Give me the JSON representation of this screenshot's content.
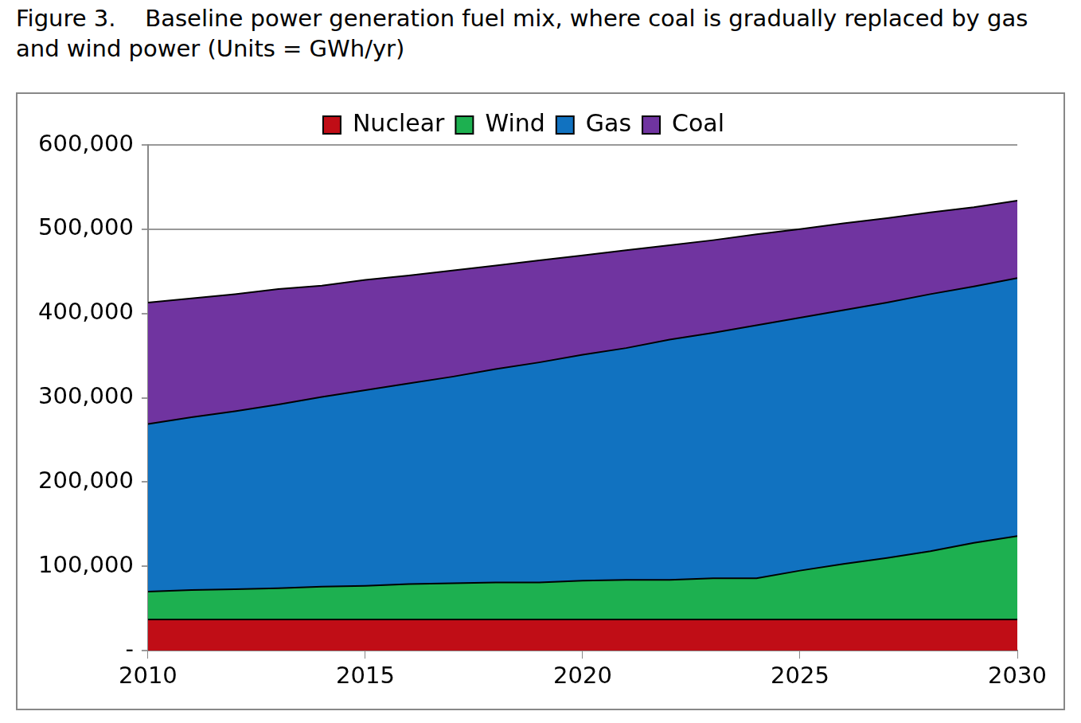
{
  "chart_data": {
    "type": "area",
    "title": "Figure 3.    Baseline power generation fuel mix, where coal is gradually replaced by gas and wind power (Units = GWh/yr)",
    "x": [
      2010,
      2011,
      2012,
      2013,
      2014,
      2015,
      2016,
      2017,
      2018,
      2019,
      2020,
      2021,
      2022,
      2023,
      2024,
      2025,
      2026,
      2027,
      2028,
      2029,
      2030
    ],
    "series": [
      {
        "name": "Nuclear",
        "color": "#c00d16",
        "values": [
          37000,
          37000,
          37000,
          37000,
          37000,
          37000,
          37000,
          37000,
          37000,
          37000,
          37000,
          37000,
          37000,
          37000,
          37000,
          37000,
          37000,
          37000,
          37000,
          37000,
          37000
        ]
      },
      {
        "name": "Wind",
        "color": "#1db050",
        "values": [
          33000,
          35000,
          36000,
          37000,
          39000,
          40000,
          42000,
          43000,
          44000,
          44000,
          46000,
          47000,
          47000,
          49000,
          49000,
          58000,
          66000,
          73000,
          81000,
          91000,
          99000
        ]
      },
      {
        "name": "Gas",
        "color": "#1172c0",
        "values": [
          199000,
          205000,
          211000,
          218000,
          225000,
          232000,
          238000,
          245000,
          253000,
          261000,
          268000,
          275000,
          285000,
          291000,
          300000,
          300000,
          301000,
          303000,
          305000,
          304000,
          306000
        ]
      },
      {
        "name": "Coal",
        "color": "#7034a0",
        "values": [
          144000,
          141000,
          139000,
          137000,
          132000,
          131000,
          128000,
          126000,
          123000,
          121000,
          118000,
          116000,
          112000,
          110000,
          108000,
          105000,
          103000,
          100000,
          97000,
          94000,
          92000
        ]
      }
    ],
    "xlim": [
      2010,
      2030
    ],
    "xticks": [
      2010,
      2015,
      2020,
      2025,
      2030
    ],
    "ylim": [
      0,
      600000
    ],
    "yticks": [
      {
        "value": 0,
        "label": "-"
      },
      {
        "value": 100000,
        "label": "100,000"
      },
      {
        "value": 200000,
        "label": "200,000"
      },
      {
        "value": 300000,
        "label": "300,000"
      },
      {
        "value": 400000,
        "label": "400,000"
      },
      {
        "value": 500000,
        "label": "500,000"
      },
      {
        "value": 600000,
        "label": "600,000"
      }
    ],
    "stacked": true,
    "grid": true,
    "legend": "top"
  }
}
